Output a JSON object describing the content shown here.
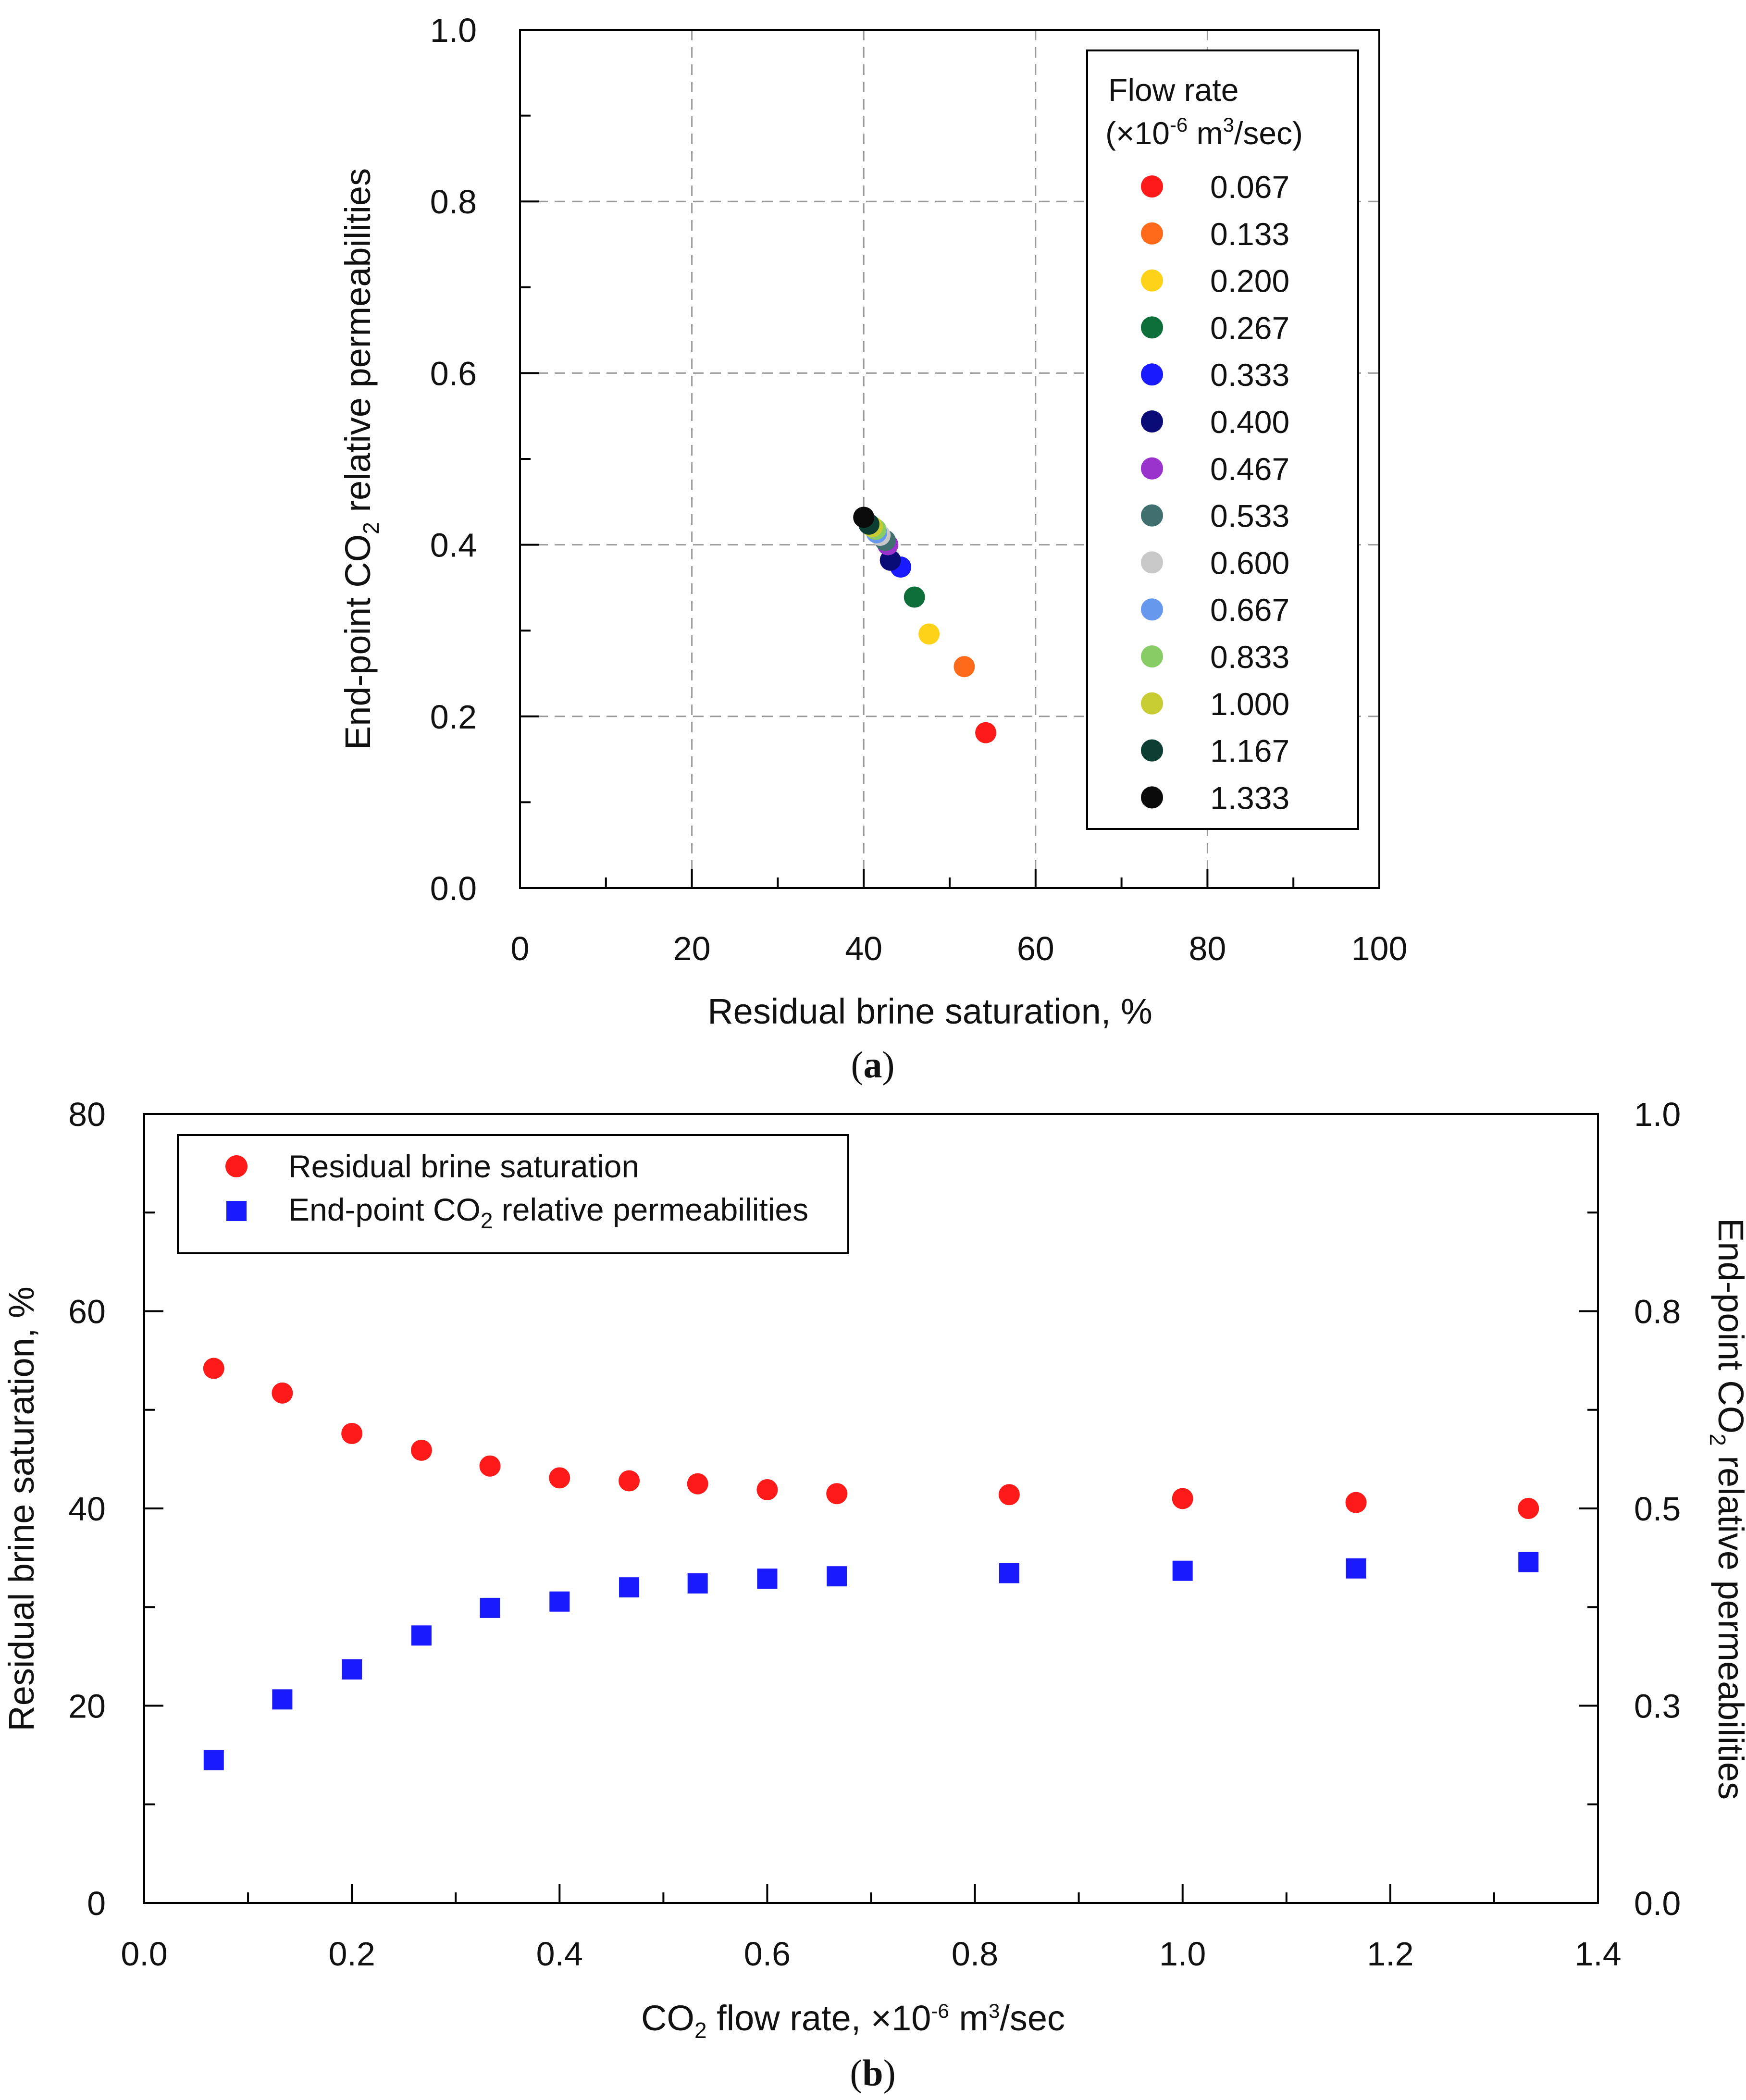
{
  "chart_data": [
    {
      "id": "a",
      "type": "scatter",
      "panel_label": "a",
      "xlabel": "Residual brine saturation, %",
      "ylabel_parts": [
        "End-point CO",
        "2",
        " relative permeabilities"
      ],
      "xlim": [
        0,
        100
      ],
      "ylim": [
        0,
        1.0
      ],
      "xticks": [
        0,
        20,
        40,
        60,
        80,
        100
      ],
      "xtick_labels": [
        "0",
        "20",
        "40",
        "60",
        "80",
        "100"
      ],
      "yticks": [
        0,
        0.2,
        0.4,
        0.6,
        0.8,
        1.0
      ],
      "ytick_labels": [
        "0.0",
        "0.2",
        "0.4",
        "0.6",
        "0.8",
        "1.0"
      ],
      "grid": true,
      "legend": {
        "position": "top-right",
        "title_line1": "Flow rate",
        "title_line2_parts": [
          "(×10",
          "-6",
          " m",
          "3",
          "/sec)"
        ]
      },
      "series": [
        {
          "name": "0.067",
          "color": "#ff1a1a",
          "x": 54.2,
          "y": 0.181
        },
        {
          "name": "0.133",
          "color": "#ff6a1a",
          "x": 51.7,
          "y": 0.258
        },
        {
          "name": "0.200",
          "color": "#ffd21a",
          "x": 47.6,
          "y": 0.296
        },
        {
          "name": "0.267",
          "color": "#0e6e3a",
          "x": 45.9,
          "y": 0.339
        },
        {
          "name": "0.333",
          "color": "#1a1aff",
          "x": 44.3,
          "y": 0.374
        },
        {
          "name": "0.400",
          "color": "#0b0b78",
          "x": 43.1,
          "y": 0.382
        },
        {
          "name": "0.467",
          "color": "#9933cc",
          "x": 42.8,
          "y": 0.4
        },
        {
          "name": "0.533",
          "color": "#3f6f6f",
          "x": 42.5,
          "y": 0.405
        },
        {
          "name": "0.600",
          "color": "#c8c8c8",
          "x": 41.9,
          "y": 0.411
        },
        {
          "name": "0.667",
          "color": "#6699ee",
          "x": 41.5,
          "y": 0.414
        },
        {
          "name": "0.833",
          "color": "#88cc66",
          "x": 41.4,
          "y": 0.418
        },
        {
          "name": "1.000",
          "color": "#c8cc33",
          "x": 41.0,
          "y": 0.421
        },
        {
          "name": "1.167",
          "color": "#0b3d33",
          "x": 40.6,
          "y": 0.424
        },
        {
          "name": "1.333",
          "color": "#0a0a0a",
          "x": 40.0,
          "y": 0.432
        }
      ]
    },
    {
      "id": "b",
      "type": "scatter",
      "panel_label": "b",
      "xlabel_parts": [
        "CO",
        "2",
        " flow rate, ×10",
        "-6",
        " m",
        "3",
        "/sec"
      ],
      "ylabel_left": "Residual brine saturation, %",
      "ylabel_right_parts": [
        "End-point CO",
        "2",
        " relative permeabilities"
      ],
      "xlim": [
        0,
        1.4
      ],
      "ylim_left": [
        0,
        80
      ],
      "ylim_right": [
        0,
        1.0
      ],
      "xticks": [
        0,
        0.2,
        0.4,
        0.6,
        0.8,
        1.0,
        1.2,
        1.4
      ],
      "xtick_labels": [
        "0.0",
        "0.2",
        "0.4",
        "0.6",
        "0.8",
        "1.0",
        "1.2",
        "1.4"
      ],
      "yticks_left": [
        0,
        20,
        40,
        60,
        80
      ],
      "ytick_labels_left": [
        "0",
        "20",
        "40",
        "60",
        "80"
      ],
      "yticks_right": [
        0,
        0.3,
        0.5,
        0.8,
        1.0
      ],
      "ytick_labels_right": [
        "0.0",
        "0.3",
        "0.5",
        "0.8",
        "1.0"
      ],
      "grid": false,
      "legend": {
        "position": "top-left"
      },
      "x": [
        0.067,
        0.133,
        0.2,
        0.267,
        0.333,
        0.4,
        0.467,
        0.533,
        0.6,
        0.667,
        0.833,
        1.0,
        1.167,
        1.333
      ],
      "series": [
        {
          "name": "Residual brine saturation",
          "axis": "left",
          "marker": "circle",
          "color": "#ff1a1a",
          "values": [
            54.2,
            51.7,
            47.6,
            45.9,
            44.3,
            43.1,
            42.8,
            42.5,
            41.9,
            41.5,
            41.4,
            41.0,
            40.6,
            40.0
          ]
        },
        {
          "name_parts": [
            "End-point CO",
            "2",
            " relative permeabilities"
          ],
          "axis": "right",
          "marker": "square",
          "color": "#1a1aff",
          "values": [
            0.181,
            0.258,
            0.296,
            0.339,
            0.374,
            0.382,
            0.4,
            0.405,
            0.411,
            0.414,
            0.418,
            0.421,
            0.424,
            0.432
          ]
        }
      ]
    }
  ]
}
